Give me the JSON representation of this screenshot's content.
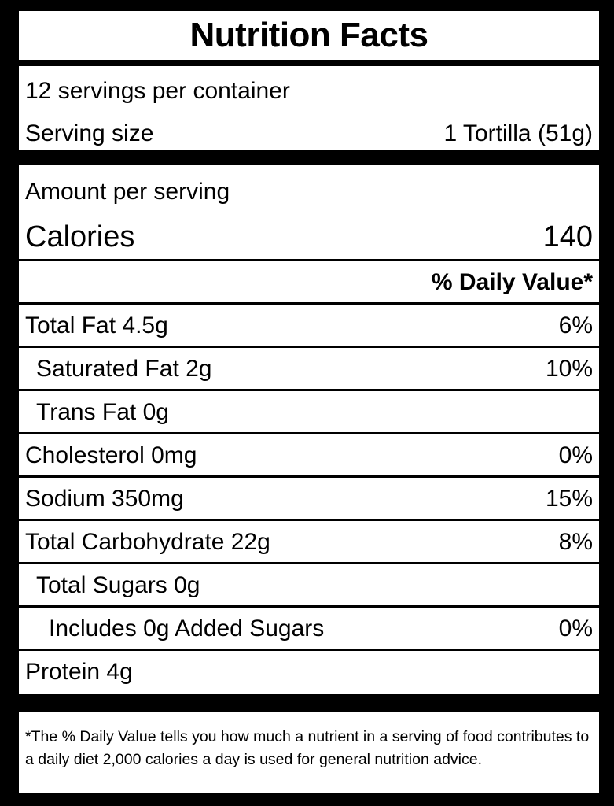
{
  "title": "Nutrition Facts",
  "servings": {
    "per_container": "12 servings per container",
    "size_label": "Serving size",
    "size_value": "1 Tortilla (51g)"
  },
  "amount_per_serving": "Amount per serving",
  "calories": {
    "label": "Calories",
    "value": "140"
  },
  "daily_value_header": "% Daily Value*",
  "nutrients": [
    {
      "label": "Total Fat 4.5g",
      "dv": "6%"
    },
    {
      "label": "Saturated Fat 2g",
      "dv": "10%"
    },
    {
      "label": "Trans Fat 0g",
      "dv": ""
    },
    {
      "label": "Cholesterol 0mg",
      "dv": "0%"
    },
    {
      "label": "Sodium 350mg",
      "dv": "15%"
    },
    {
      "label": "Total Carbohydrate 22g",
      "dv": "8%"
    },
    {
      "label": "Total Sugars 0g",
      "dv": ""
    },
    {
      "label": "Includes 0g Added Sugars",
      "dv": "0%"
    },
    {
      "label": "Protein 4g",
      "dv": ""
    }
  ],
  "footnote": "*The % Daily Value tells you how much a nutrient in a serving of food contributes to a daily diet 2,000 calories a day is used for general nutrition advice."
}
